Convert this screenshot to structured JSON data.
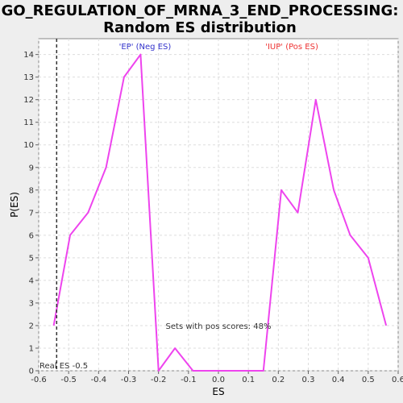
{
  "chart_data": {
    "type": "line",
    "title_line1": "GO_REGULATION_OF_MRNA_3_END_PROCESSING:",
    "title_line2": "Random ES distribution",
    "xlabel": "ES",
    "ylabel": "P(ES)",
    "xlim": [
      -0.6,
      0.6
    ],
    "ylim": [
      0,
      14.7
    ],
    "xticks": [
      -0.6,
      -0.5,
      -0.4,
      -0.3,
      -0.2,
      -0.1,
      0.0,
      0.1,
      0.2,
      0.3,
      0.4,
      0.5,
      0.6
    ],
    "xtick_labels": [
      "-0.6",
      "-0.5",
      "-0.4",
      "-0.3",
      "-0.2",
      "-0.1",
      "0.0",
      "0.1",
      "0.2",
      "0.3",
      "0.4",
      "0.5",
      "0.6"
    ],
    "yticks": [
      0,
      1,
      2,
      3,
      4,
      5,
      6,
      7,
      8,
      9,
      10,
      11,
      12,
      13,
      14
    ],
    "ytick_labels": [
      "0",
      "1",
      "2",
      "3",
      "4",
      "5",
      "6",
      "7",
      "8",
      "9",
      "10",
      "11",
      "12",
      "13",
      "14"
    ],
    "grid": true,
    "series": [
      {
        "color": "#ee44ee",
        "x": [
          -0.55,
          -0.495,
          -0.435,
          -0.375,
          -0.315,
          -0.26,
          -0.2,
          -0.145,
          -0.085,
          -0.03,
          0.03,
          0.09,
          0.15,
          0.21,
          0.265,
          0.325,
          0.385,
          0.44,
          0.5,
          0.56
        ],
        "y": [
          2,
          6,
          7,
          9,
          13,
          14,
          0,
          1,
          0,
          0,
          0,
          0,
          0,
          8,
          7,
          12,
          8,
          6,
          5,
          2
        ]
      }
    ],
    "real_es": -0.54,
    "annotations": {
      "neg_label": "'EP' (Neg ES)",
      "neg_color": "#3333cc",
      "pos_label": "'IUP' (Pos ES)",
      "pos_color": "#ee3333",
      "pos_scores_text": "Sets with pos scores: 48%",
      "real_es_text": "Real ES -0.5"
    }
  }
}
